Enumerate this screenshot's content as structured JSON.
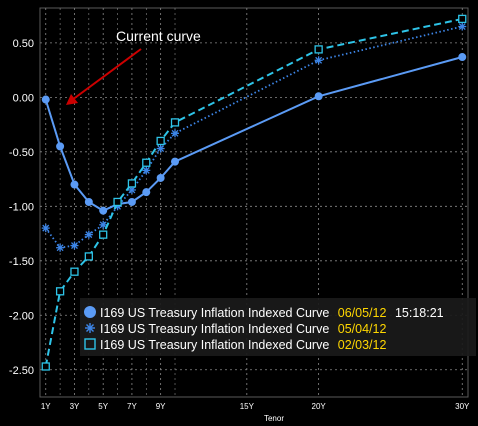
{
  "chart_data": {
    "type": "line",
    "xlabel": "Tenor",
    "ylabel": "",
    "x_tick_labels": [
      {
        "label": "1Y",
        "tenor": 1
      },
      {
        "label": "3Y",
        "tenor": 3
      },
      {
        "label": "5Y",
        "tenor": 5
      },
      {
        "label": "7Y",
        "tenor": 7
      },
      {
        "label": "9Y",
        "tenor": 9
      },
      {
        "label": "15Y",
        "tenor": 15
      },
      {
        "label": "20Y",
        "tenor": 20
      },
      {
        "label": "30Y",
        "tenor": 30
      }
    ],
    "y_ticks": [
      {
        "label": "0.50",
        "value": 0.5
      },
      {
        "label": "0.00",
        "value": 0.0
      },
      {
        "label": "-0.50",
        "value": -0.5
      },
      {
        "label": "-1.00",
        "value": -1.0
      },
      {
        "label": "-1.50",
        "value": -1.5
      },
      {
        "label": "-2.00",
        "value": -2.0
      },
      {
        "label": "-2.50",
        "value": -2.5
      }
    ],
    "minor_gridlines": [
      2,
      4,
      6,
      8,
      10
    ],
    "xlim": [
      0.6,
      30.4
    ],
    "ylim": [
      -2.75,
      0.82
    ],
    "grid": true,
    "legend_position": "bottom-right",
    "series": [
      {
        "name": "I169 US Treasury Inflation Indexed Curve",
        "date": "06/05/12",
        "time": "15:18:21",
        "marker": "circle",
        "line": "solid",
        "color": "#5b9bf5",
        "x": [
          1,
          2,
          3,
          4,
          5,
          6,
          7,
          8,
          9,
          10,
          20,
          30
        ],
        "y": [
          -0.02,
          -0.45,
          -0.8,
          -0.96,
          -1.04,
          -0.98,
          -0.96,
          -0.87,
          -0.74,
          -0.59,
          0.01,
          0.37
        ]
      },
      {
        "name": "I169 US Treasury Inflation Indexed Curve",
        "date": "05/04/12",
        "marker": "star",
        "line": "dotted",
        "color": "#3d86e8",
        "x": [
          1,
          2,
          3,
          4,
          5,
          6,
          7,
          8,
          9,
          10,
          20,
          30
        ],
        "y": [
          -1.2,
          -1.38,
          -1.36,
          -1.26,
          -1.17,
          -1.0,
          -0.85,
          -0.67,
          -0.47,
          -0.33,
          0.34,
          0.65
        ]
      },
      {
        "name": "I169 US Treasury Inflation Indexed Curve",
        "date": "02/03/12",
        "marker": "square",
        "line": "dashed",
        "color": "#2ec4e8",
        "x": [
          1,
          2,
          3,
          4,
          5,
          6,
          7,
          8,
          9,
          10,
          20,
          30
        ],
        "y": [
          -2.47,
          -1.78,
          -1.6,
          -1.46,
          -1.26,
          -0.96,
          -0.79,
          -0.6,
          -0.4,
          -0.23,
          0.44,
          0.72
        ]
      }
    ],
    "annotations": [
      {
        "text": "Current curve",
        "arrow_color": "#cc0000"
      }
    ]
  },
  "colors": {
    "background": "#000000",
    "grid": "#8a8a8a",
    "axis_text": "#ffffff",
    "legend_date": "#ffd700",
    "legend_name": "#ffffff",
    "legend_time": "#ffffff",
    "legend_bg": "#1a1a1a"
  }
}
